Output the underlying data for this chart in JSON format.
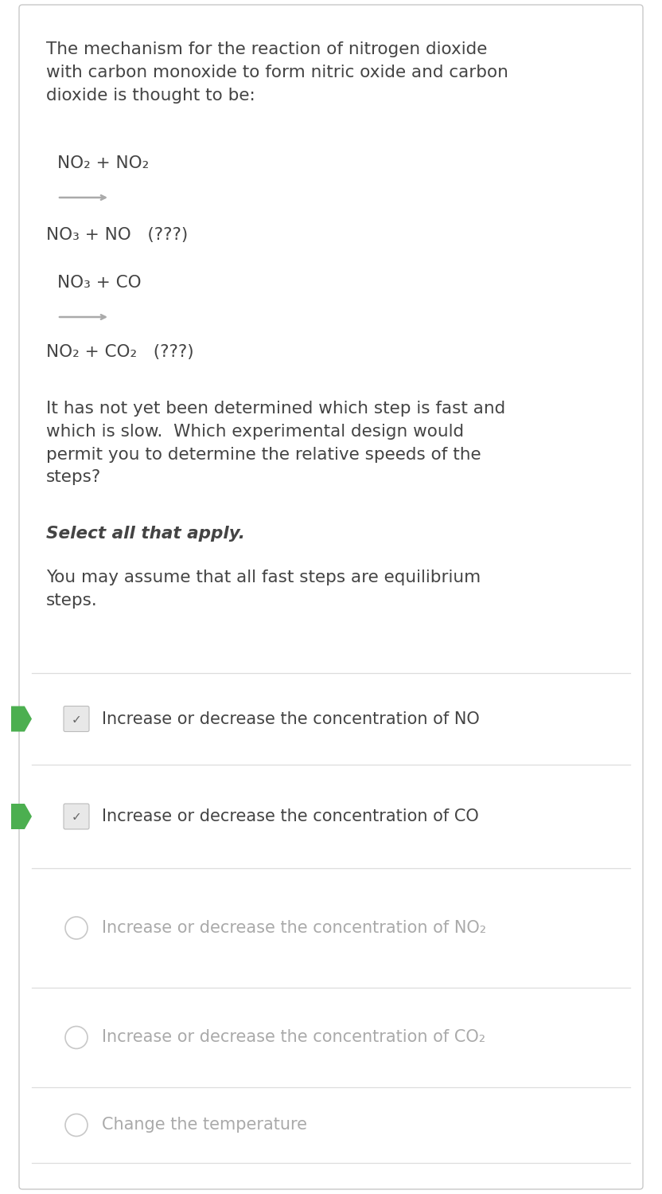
{
  "bg_color": "#ffffff",
  "border_color": "#c8c8c8",
  "text_color": "#444444",
  "light_text_color": "#aaaaaa",
  "green_color": "#4caf50",
  "divider_color": "#dddddd",
  "checkbox_bg": "#e8e8e8",
  "paragraph_text": "The mechanism for the reaction of nitrogen dioxide\nwith carbon monoxide to form nitric oxide and carbon\ndioxide is thought to be:",
  "reaction1_reactants": "NO₂ + NO₂",
  "reaction1_products": "NO₃ + NO   (???)",
  "reaction2_reactants": "NO₃ + CO",
  "reaction2_products": "NO₂ + CO₂   (???)",
  "follow_up_text": "It has not yet been determined which step is fast and\nwhich is slow.  Which experimental design would\npermit you to determine the relative speeds of the\nsteps?",
  "bold_text": "Select all that apply.",
  "assumption_text": "You may assume that all fast steps are equilibrium\nsteps.",
  "options": [
    {
      "text": "Increase or decrease the concentration of NO",
      "checked": true,
      "correct": true
    },
    {
      "text": "Increase or decrease the concentration of CO",
      "checked": true,
      "correct": true
    },
    {
      "text": "Increase or decrease the concentration of NO₂",
      "checked": false,
      "correct": false
    },
    {
      "text": "Increase or decrease the concentration of CO₂",
      "checked": false,
      "correct": false
    },
    {
      "text": "Change the temperature",
      "checked": false,
      "correct": false
    }
  ]
}
